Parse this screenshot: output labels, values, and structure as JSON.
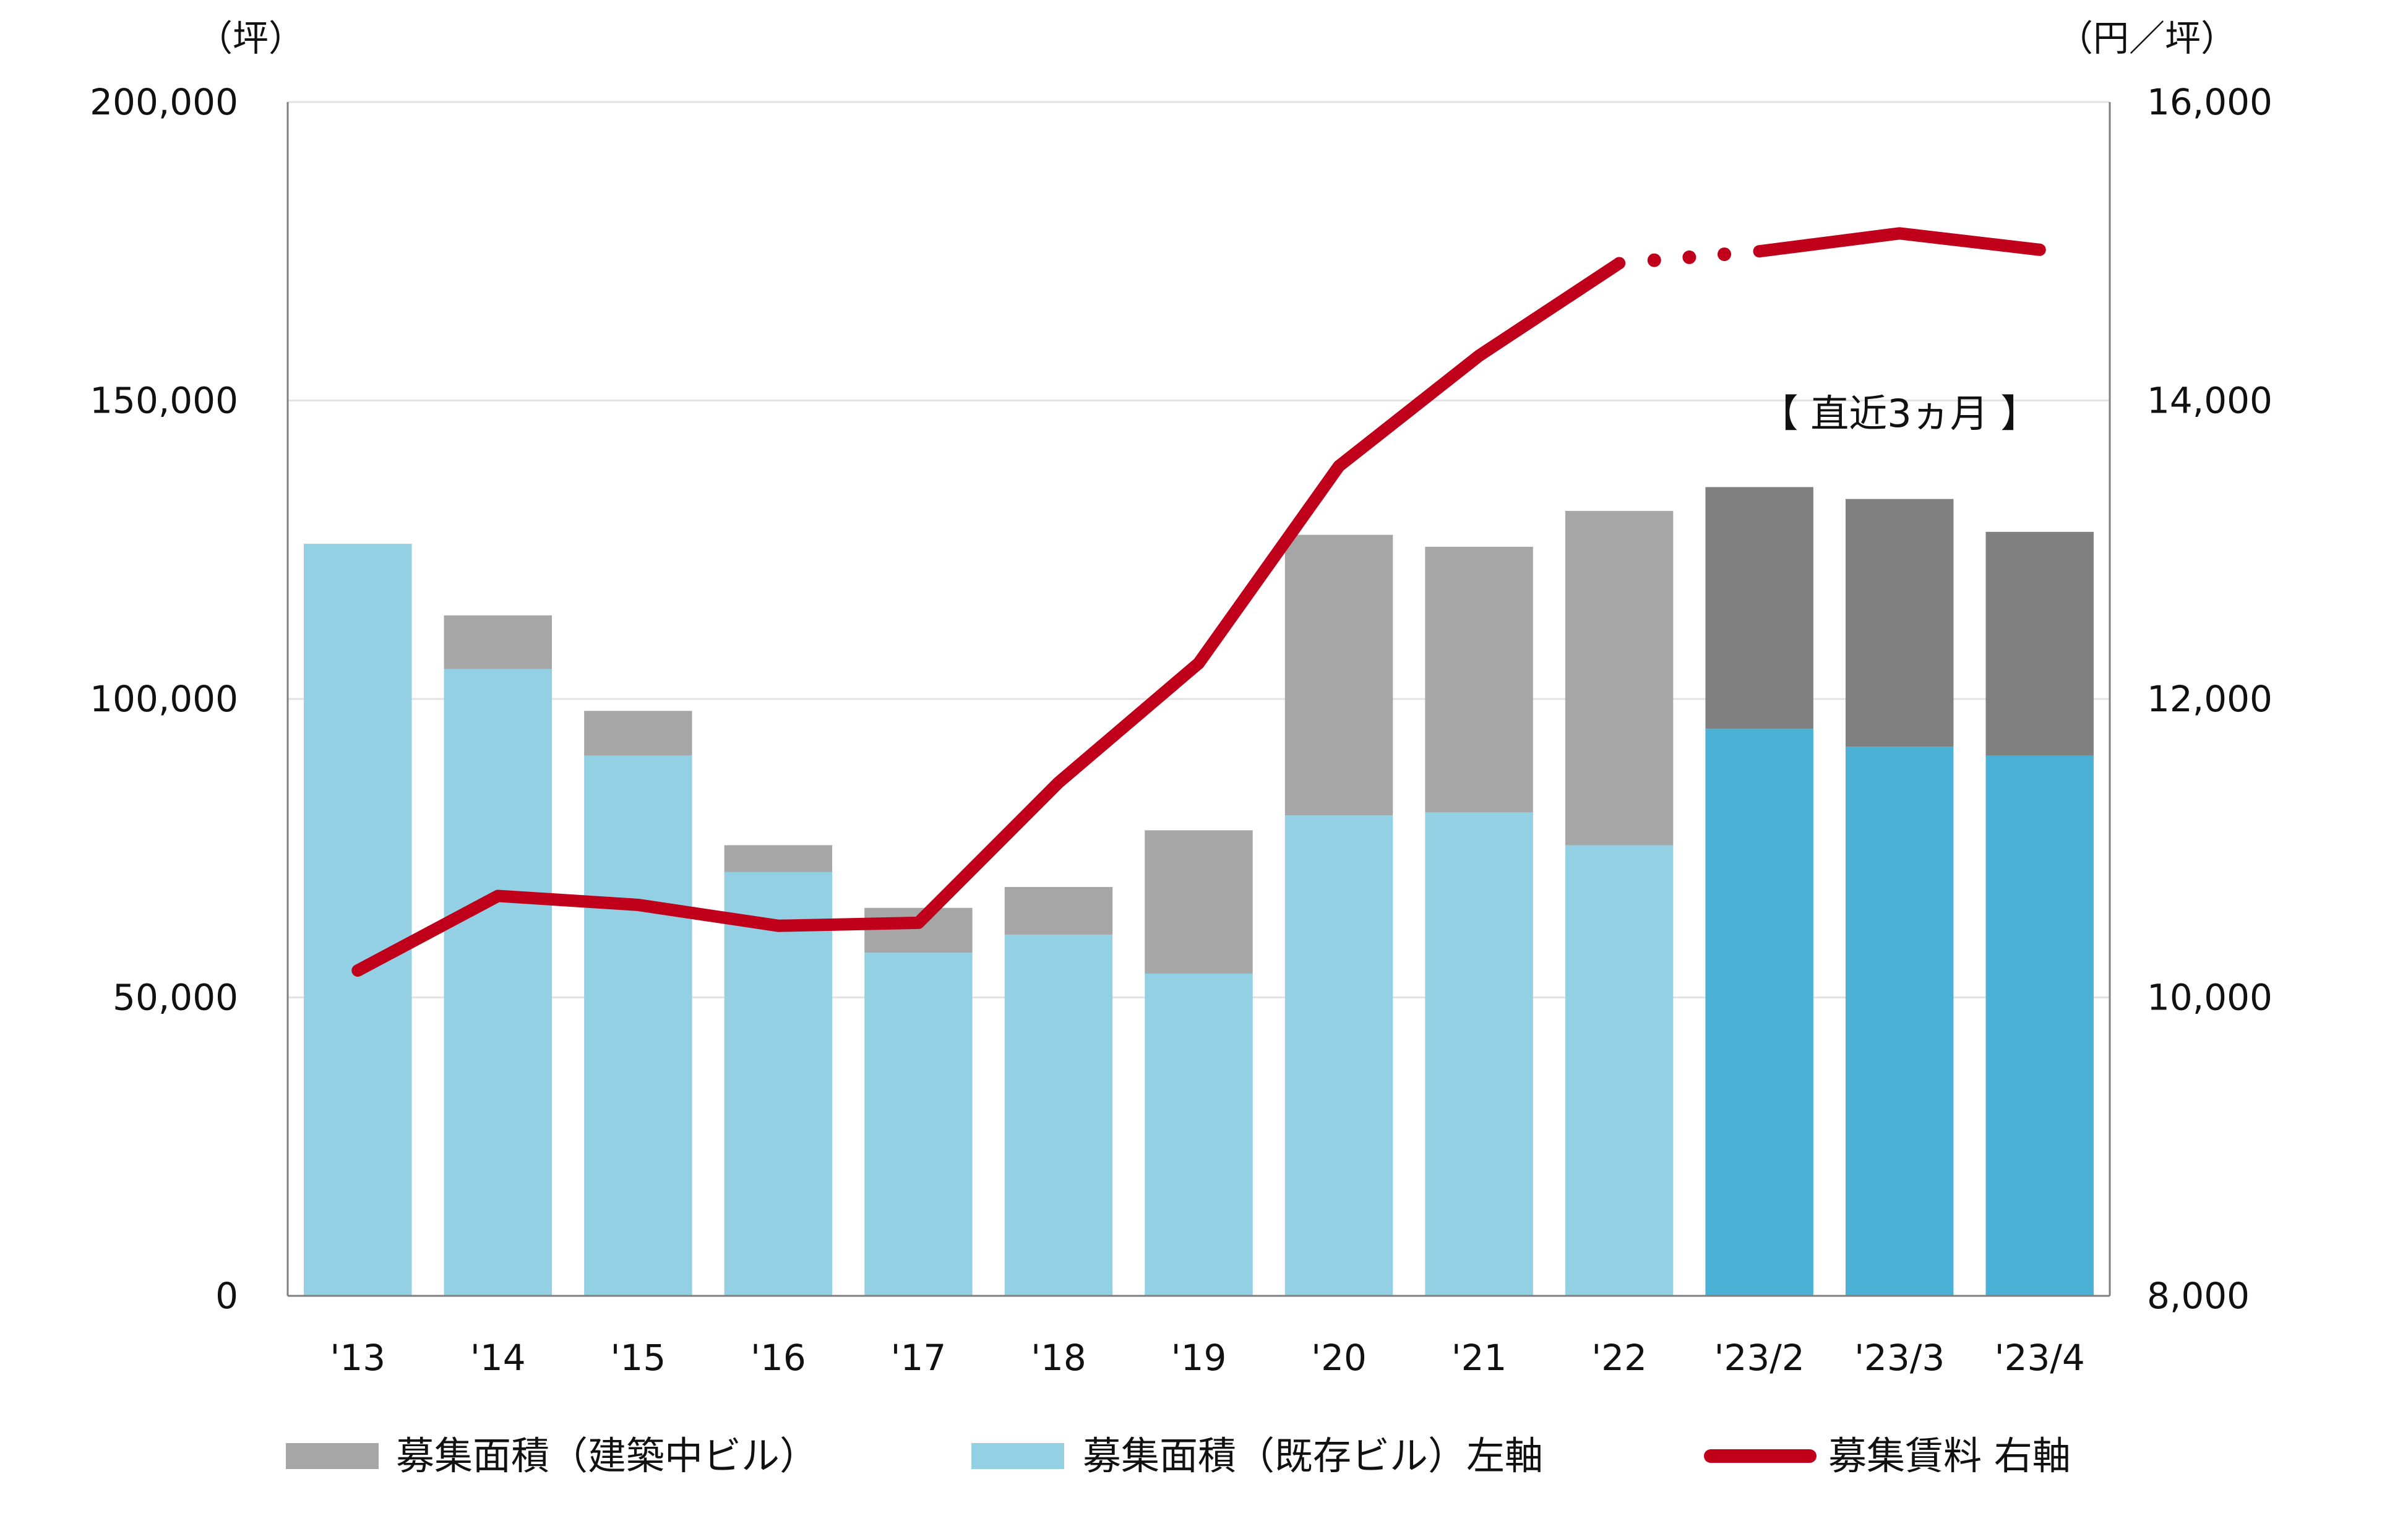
{
  "chart_data": {
    "type": "bar",
    "stacked": true,
    "categories": [
      "'13",
      "'14",
      "'15",
      "'16",
      "'17",
      "'18",
      "'19",
      "'20",
      "'21",
      "'22",
      "'23/2",
      "'23/3",
      "'23/4"
    ],
    "left_axis": {
      "unit": "（坪）",
      "ylim": [
        0,
        200000
      ],
      "ticks": [
        "0",
        "50,000",
        "100,000",
        "150,000",
        "200,000"
      ]
    },
    "right_axis": {
      "unit": "（円／坪）",
      "ylim": [
        8000,
        16000
      ],
      "ticks": [
        "8,000",
        "10,000",
        "12,000",
        "14,000",
        "16,000"
      ]
    },
    "series": [
      {
        "name": "募集面積（既存ビル）左軸",
        "axis": "left",
        "values": [
          126000,
          105000,
          90500,
          71000,
          57500,
          60500,
          54000,
          80500,
          81000,
          75500,
          95000,
          92000,
          90500
        ],
        "color": "#93d0e4",
        "recent_color": "#4ab0d4"
      },
      {
        "name": "募集面積（建築中ビル）",
        "axis": "left",
        "values": [
          0,
          9000,
          7500,
          4500,
          7500,
          8000,
          24000,
          47000,
          44500,
          56000,
          40500,
          41500,
          37500
        ],
        "color": "#a6a6a6",
        "recent_color": "#808080"
      },
      {
        "name": "募集賃料 右軸",
        "axis": "right",
        "type": "line",
        "values": [
          10180,
          10680,
          10620,
          10480,
          10500,
          11440,
          12240,
          13560,
          14300,
          14920,
          15000,
          15120,
          15010
        ],
        "color": "#c0001a"
      }
    ],
    "recent_start_index": 10,
    "dotted_segment": [
      9,
      10
    ],
    "annotation": "【 直近3ヵ月 】",
    "grid": true
  }
}
